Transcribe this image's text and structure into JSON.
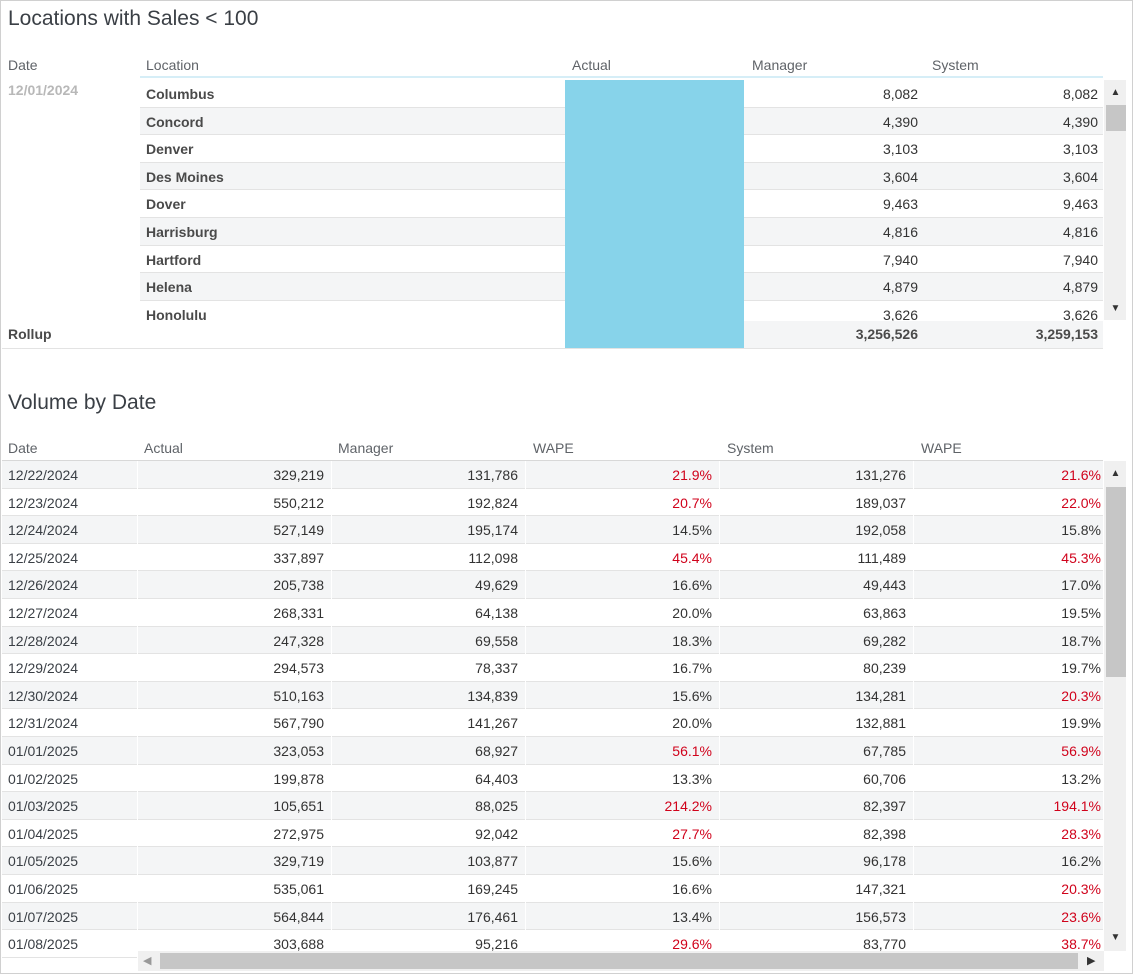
{
  "top": {
    "title": "Locations with Sales < 100",
    "headers": {
      "date": "Date",
      "location": "Location",
      "actual": "Actual",
      "manager": "Manager",
      "system": "System"
    },
    "date_value": "12/01/2024",
    "rows": [
      {
        "location": "Columbus",
        "manager": "8,082",
        "system": "8,082"
      },
      {
        "location": "Concord",
        "manager": "4,390",
        "system": "4,390"
      },
      {
        "location": "Denver",
        "manager": "3,103",
        "system": "3,103"
      },
      {
        "location": "Des Moines",
        "manager": "3,604",
        "system": "3,604"
      },
      {
        "location": "Dover",
        "manager": "9,463",
        "system": "9,463"
      },
      {
        "location": "Harrisburg",
        "manager": "4,816",
        "system": "4,816"
      },
      {
        "location": "Hartford",
        "manager": "7,940",
        "system": "7,940"
      },
      {
        "location": "Helena",
        "manager": "4,879",
        "system": "4,879"
      },
      {
        "location": "Honolulu",
        "manager": "3,626",
        "system": "3,626"
      }
    ],
    "rollup": {
      "label": "Rollup",
      "manager": "3,256,526",
      "system": "3,259,153"
    },
    "actual_fill_color": "#87d3ea"
  },
  "bottom": {
    "title": "Volume by Date",
    "headers": {
      "date": "Date",
      "actual": "Actual",
      "manager": "Manager",
      "wape1": "WAPE",
      "system": "System",
      "wape2": "WAPE"
    },
    "rows": [
      {
        "date": "12/22/2024",
        "actual": "329,219",
        "manager": "131,786",
        "wape1": "21.9%",
        "wape1_red": true,
        "system": "131,276",
        "wape2": "21.6%",
        "wape2_red": true
      },
      {
        "date": "12/23/2024",
        "actual": "550,212",
        "manager": "192,824",
        "wape1": "20.7%",
        "wape1_red": true,
        "system": "189,037",
        "wape2": "22.0%",
        "wape2_red": true
      },
      {
        "date": "12/24/2024",
        "actual": "527,149",
        "manager": "195,174",
        "wape1": "14.5%",
        "wape1_red": false,
        "system": "192,058",
        "wape2": "15.8%",
        "wape2_red": false
      },
      {
        "date": "12/25/2024",
        "actual": "337,897",
        "manager": "112,098",
        "wape1": "45.4%",
        "wape1_red": true,
        "system": "111,489",
        "wape2": "45.3%",
        "wape2_red": true
      },
      {
        "date": "12/26/2024",
        "actual": "205,738",
        "manager": "49,629",
        "wape1": "16.6%",
        "wape1_red": false,
        "system": "49,443",
        "wape2": "17.0%",
        "wape2_red": false
      },
      {
        "date": "12/27/2024",
        "actual": "268,331",
        "manager": "64,138",
        "wape1": "20.0%",
        "wape1_red": false,
        "system": "63,863",
        "wape2": "19.5%",
        "wape2_red": false
      },
      {
        "date": "12/28/2024",
        "actual": "247,328",
        "manager": "69,558",
        "wape1": "18.3%",
        "wape1_red": false,
        "system": "69,282",
        "wape2": "18.7%",
        "wape2_red": false
      },
      {
        "date": "12/29/2024",
        "actual": "294,573",
        "manager": "78,337",
        "wape1": "16.7%",
        "wape1_red": false,
        "system": "80,239",
        "wape2": "19.7%",
        "wape2_red": false
      },
      {
        "date": "12/30/2024",
        "actual": "510,163",
        "manager": "134,839",
        "wape1": "15.6%",
        "wape1_red": false,
        "system": "134,281",
        "wape2": "20.3%",
        "wape2_red": true
      },
      {
        "date": "12/31/2024",
        "actual": "567,790",
        "manager": "141,267",
        "wape1": "20.0%",
        "wape1_red": false,
        "system": "132,881",
        "wape2": "19.9%",
        "wape2_red": false
      },
      {
        "date": "01/01/2025",
        "actual": "323,053",
        "manager": "68,927",
        "wape1": "56.1%",
        "wape1_red": true,
        "system": "67,785",
        "wape2": "56.9%",
        "wape2_red": true
      },
      {
        "date": "01/02/2025",
        "actual": "199,878",
        "manager": "64,403",
        "wape1": "13.3%",
        "wape1_red": false,
        "system": "60,706",
        "wape2": "13.2%",
        "wape2_red": false
      },
      {
        "date": "01/03/2025",
        "actual": "105,651",
        "manager": "88,025",
        "wape1": "214.2%",
        "wape1_red": true,
        "system": "82,397",
        "wape2": "194.1%",
        "wape2_red": true
      },
      {
        "date": "01/04/2025",
        "actual": "272,975",
        "manager": "92,042",
        "wape1": "27.7%",
        "wape1_red": true,
        "system": "82,398",
        "wape2": "28.3%",
        "wape2_red": true
      },
      {
        "date": "01/05/2025",
        "actual": "329,719",
        "manager": "103,877",
        "wape1": "15.6%",
        "wape1_red": false,
        "system": "96,178",
        "wape2": "16.2%",
        "wape2_red": false
      },
      {
        "date": "01/06/2025",
        "actual": "535,061",
        "manager": "169,245",
        "wape1": "16.6%",
        "wape1_red": false,
        "system": "147,321",
        "wape2": "20.3%",
        "wape2_red": true
      },
      {
        "date": "01/07/2025",
        "actual": "564,844",
        "manager": "176,461",
        "wape1": "13.4%",
        "wape1_red": false,
        "system": "156,573",
        "wape2": "23.6%",
        "wape2_red": true
      },
      {
        "date": "01/08/2025",
        "actual": "303,688",
        "manager": "95,216",
        "wape1": "29.6%",
        "wape1_red": true,
        "system": "83,770",
        "wape2": "38.7%",
        "wape2_red": true
      }
    ],
    "warning_color": "#d0021b"
  }
}
